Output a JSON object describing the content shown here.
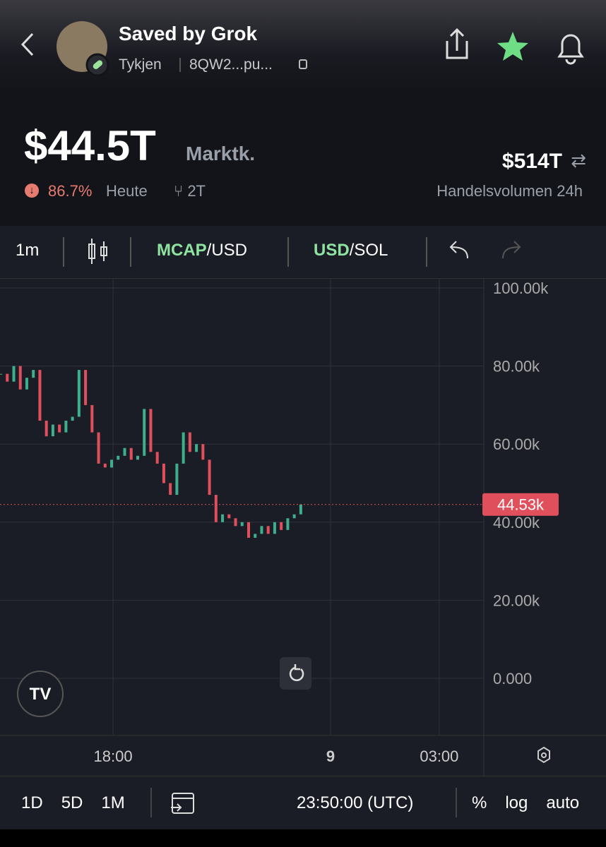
{
  "header": {
    "title": "Saved by Grok",
    "creator": "Tykjen",
    "address": "8QW2...pu..."
  },
  "stats": {
    "market_cap": "$44.5T",
    "market_cap_label": "Marktk.",
    "change": "86.7%",
    "change_period": "Heute",
    "holders": "2T",
    "volume": "$514T",
    "volume_label": "Handelsvolumen 24h"
  },
  "toolbar": {
    "interval": "1m",
    "pair1": {
      "base": "MCAP",
      "quote": "/USD"
    },
    "pair2": {
      "base": "USD",
      "quote": "/SOL"
    }
  },
  "chart_data": {
    "type": "candlestick",
    "x": [
      14.9,
      15.08,
      15.26,
      15.44,
      15.62,
      15.8,
      15.98,
      16.16,
      16.34,
      16.52,
      16.7,
      16.88,
      17.06,
      17.24,
      17.42,
      17.6,
      17.78,
      17.96,
      18.14,
      18.32,
      18.5,
      18.68,
      18.86,
      19.04,
      19.22,
      19.4,
      19.58,
      19.76,
      19.94,
      20.12,
      20.3,
      20.48,
      20.66,
      20.84,
      21.02,
      21.2,
      21.38,
      21.56,
      21.74,
      21.92,
      22.1,
      22.28,
      22.46,
      22.64,
      22.82,
      23.0,
      23.18
    ],
    "values": [
      78000,
      76000,
      80000,
      74000,
      77000,
      79000,
      66000,
      62000,
      65000,
      63000,
      66000,
      67000,
      79000,
      70000,
      63000,
      55000,
      54000,
      56000,
      57000,
      59000,
      56000,
      57000,
      69000,
      58000,
      55000,
      50000,
      47000,
      55000,
      63000,
      58000,
      60000,
      56000,
      47000,
      40000,
      42000,
      41000,
      39000,
      40000,
      36000,
      37000,
      39000,
      37000,
      40000,
      38000,
      41000,
      42000,
      44530
    ],
    "up_color": "#3fae8c",
    "down_color": "#e0505c",
    "price_label": {
      "value": 44530,
      "label": "44.53k"
    },
    "xlim": [
      14.88,
      28.23
    ],
    "xticks": [
      {
        "value": 18,
        "label": "18:00"
      },
      {
        "value": 24,
        "label": "9"
      },
      {
        "value": 27,
        "label": "03:00"
      }
    ],
    "ylim": [
      -14650,
      102350
    ],
    "yticks": [
      {
        "value": 0,
        "label": "0.000"
      },
      {
        "value": 20000,
        "label": "20.00k"
      },
      {
        "value": 40000,
        "label": "40.00k"
      },
      {
        "value": 60000,
        "label": "60.00k"
      },
      {
        "value": 80000,
        "label": "80.00k"
      },
      {
        "value": 100000,
        "label": "100.00k"
      }
    ],
    "grid": true
  },
  "bottom_bar": {
    "ranges": [
      "1D",
      "5D",
      "1M"
    ],
    "time": "23:50:00 (UTC)",
    "options": [
      "%",
      "log",
      "auto"
    ]
  }
}
